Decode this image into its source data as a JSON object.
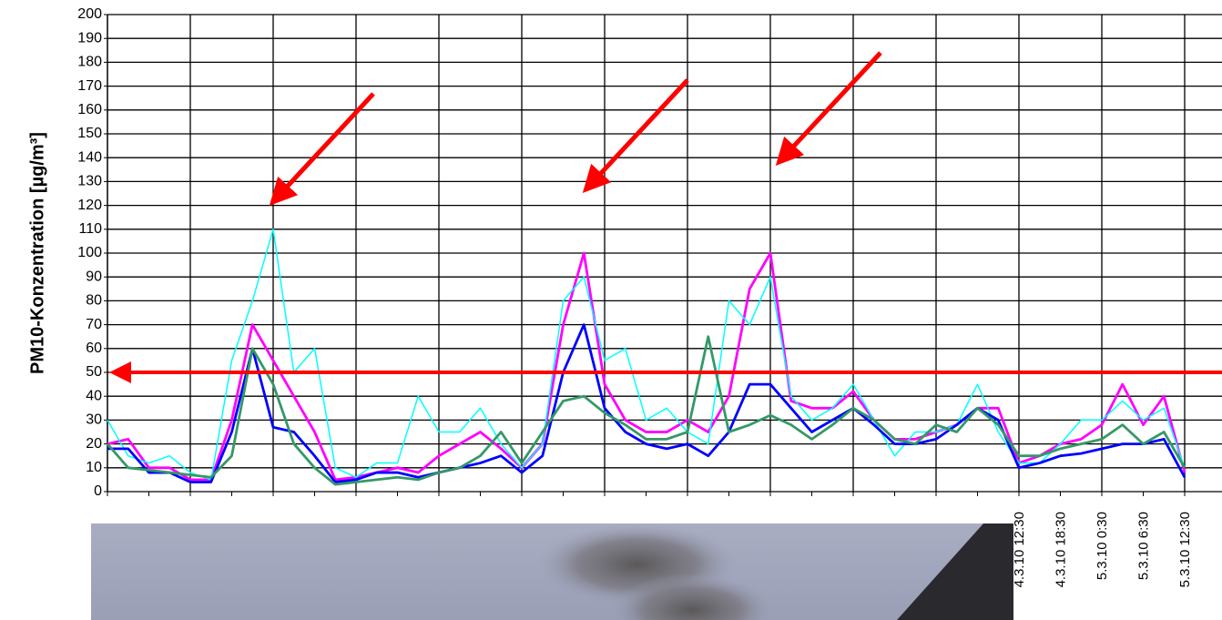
{
  "chart_data": {
    "type": "line",
    "y_label": "PM10-Konzentration [µg/m³]",
    "categories": [
      null,
      null,
      null,
      null,
      null,
      null,
      null,
      null,
      null,
      null,
      null,
      null,
      null,
      null,
      null,
      null,
      null,
      null,
      null,
      null,
      null,
      null,
      null,
      null,
      null,
      null,
      null,
      null,
      null,
      null,
      null,
      null,
      null,
      null,
      null,
      null,
      null,
      null,
      null,
      null,
      null,
      null,
      null,
      null,
      "4.3.10 12:30",
      null,
      "4.3.10 18:30",
      null,
      "5.3.10 0:30",
      null,
      "5.3.10 6:30",
      null,
      "5.3.10 12:30",
      null
    ],
    "series": [
      {
        "color": "#ff00ff",
        "values": [
          20,
          22,
          10,
          10,
          5,
          5,
          30,
          70,
          55,
          40,
          25,
          5,
          6,
          8,
          10,
          8,
          15,
          20,
          25,
          18,
          10,
          20,
          70,
          100,
          45,
          30,
          25,
          25,
          30,
          25,
          40,
          85,
          100,
          38,
          35,
          35,
          42,
          30,
          22,
          22,
          25,
          28,
          35,
          35,
          12,
          15,
          20,
          22,
          28,
          45,
          28,
          40,
          8,
          null
        ]
      },
      {
        "color": "#00ffff",
        "values": [
          30,
          15,
          12,
          15,
          8,
          5,
          55,
          80,
          110,
          50,
          60,
          10,
          6,
          12,
          12,
          40,
          25,
          25,
          35,
          20,
          10,
          20,
          80,
          90,
          55,
          60,
          30,
          35,
          25,
          20,
          80,
          70,
          90,
          40,
          30,
          35,
          45,
          30,
          15,
          25,
          25,
          28,
          45,
          25,
          12,
          12,
          20,
          30,
          30,
          38,
          30,
          35,
          10,
          null
        ]
      },
      {
        "color": "#0000ff",
        "values": [
          18,
          18,
          8,
          8,
          4,
          4,
          25,
          60,
          27,
          25,
          15,
          4,
          5,
          8,
          8,
          6,
          8,
          10,
          12,
          15,
          8,
          15,
          50,
          70,
          35,
          25,
          20,
          18,
          20,
          15,
          25,
          45,
          45,
          35,
          25,
          30,
          35,
          28,
          20,
          20,
          22,
          28,
          35,
          30,
          10,
          12,
          15,
          16,
          18,
          20,
          20,
          22,
          6,
          null
        ]
      },
      {
        "color": "#339966",
        "values": [
          20,
          10,
          9,
          8,
          7,
          6,
          15,
          60,
          45,
          20,
          10,
          3,
          4,
          5,
          6,
          5,
          8,
          10,
          15,
          25,
          12,
          25,
          38,
          40,
          33,
          28,
          22,
          22,
          25,
          65,
          25,
          28,
          32,
          28,
          22,
          28,
          35,
          30,
          22,
          20,
          28,
          25,
          35,
          28,
          15,
          15,
          18,
          20,
          22,
          28,
          20,
          25,
          10,
          null
        ]
      }
    ],
    "threshold": 50,
    "ylim": [
      0,
      200
    ],
    "yticks": [
      0,
      10,
      20,
      30,
      40,
      50,
      60,
      70,
      80,
      90,
      100,
      110,
      120,
      130,
      140,
      150,
      160,
      170,
      180,
      190,
      200
    ],
    "grid": true
  }
}
